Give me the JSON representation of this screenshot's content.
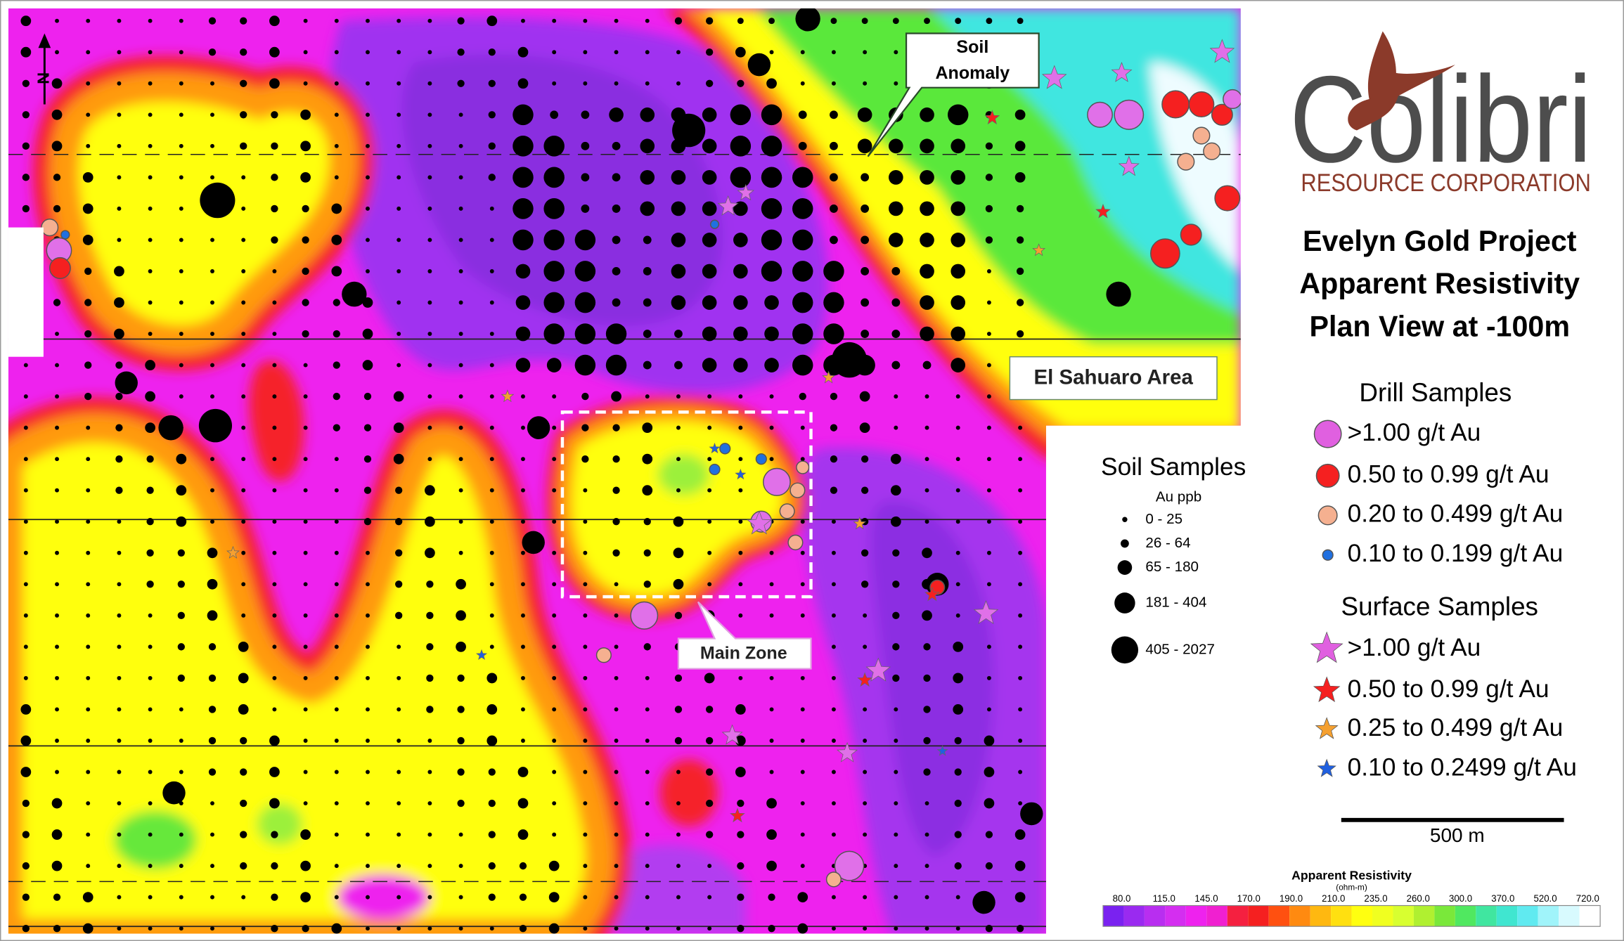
{
  "map": {
    "north_label": "N",
    "soil_anomaly": [
      "Soil",
      "Anomaly"
    ],
    "el_sahuaro": "El Sahuaro Area",
    "main_zone": "Main Zone"
  },
  "logo": {
    "name": "Colibri",
    "subtitle": "RESOURCE CORPORATION"
  },
  "title": [
    "Evelyn Gold Project",
    "Apparent Resistivity",
    "Plan View at -100m"
  ],
  "drill_samples": {
    "title": "Drill Samples",
    "items": [
      ">1.00 g/t Au",
      "0.50 to 0.99 g/t Au",
      "0.20 to 0.499 g/t Au",
      "0.10 to 0.199 g/t Au"
    ]
  },
  "surface_samples": {
    "title": "Surface Samples",
    "items": [
      ">1.00 g/t Au",
      "0.50 to 0.99 g/t Au",
      "0.25 to 0.499 g/t Au",
      "0.10 to 0.2499 g/t Au"
    ]
  },
  "soil_samples": {
    "title": "Soil Samples",
    "unit": "Au ppb",
    "items": [
      "0 - 25",
      "26 - 64",
      "65 - 180",
      "181 - 404",
      "405 - 2027"
    ]
  },
  "scale_bar": "500 m",
  "colorbar": {
    "title": "Apparent Resistivity",
    "unit": "(ohm-m)",
    "labels": [
      "80.0",
      "115.0",
      "145.0",
      "170.0",
      "190.0",
      "210.0",
      "235.0",
      "260.0",
      "300.0",
      "370.0",
      "520.0",
      "720.0"
    ]
  }
}
